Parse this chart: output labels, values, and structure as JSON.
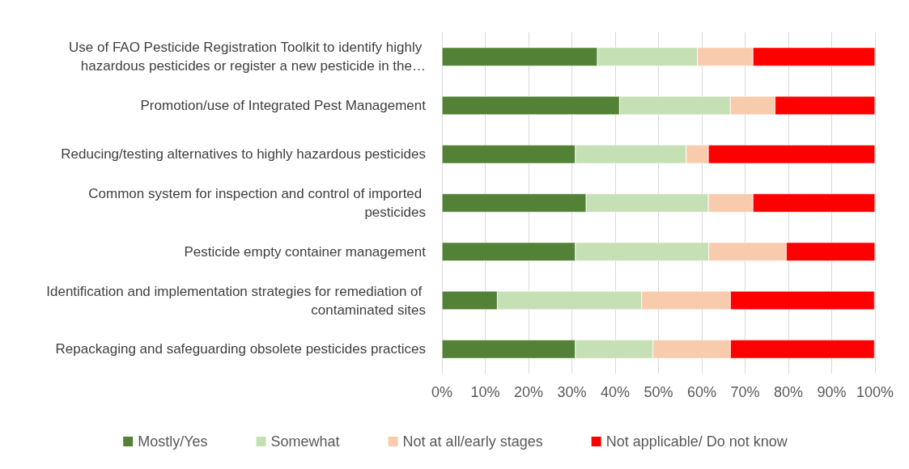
{
  "chart_data": {
    "type": "bar",
    "orientation": "horizontal",
    "stacked": true,
    "categories": [
      "Use of FAO Pesticide Registration Toolkit to identify highly hazardous pesticides or register a new pesticide in the…",
      "Promotion/use of Integrated Pest Management",
      "Reducing/testing alternatives to highly hazardous pesticides",
      "Common system for inspection and control of imported pesticides",
      "Pesticide empty container management",
      "Identification and implementation strategies for remediation of contaminated sites",
      "Repackaging and safeguarding obsolete pesticides practices"
    ],
    "series": [
      {
        "name": "Mostly/Yes",
        "color": "#538135",
        "values": [
          35.9,
          41.0,
          30.8,
          33.3,
          30.8,
          12.8,
          30.8
        ]
      },
      {
        "name": "Somewhat",
        "color": "#c5e0b4",
        "values": [
          23.1,
          25.6,
          25.6,
          28.2,
          30.8,
          33.3,
          17.9
        ]
      },
      {
        "name": "Not at all/early stages",
        "color": "#f8cbad",
        "values": [
          12.8,
          10.3,
          5.1,
          10.3,
          17.9,
          20.5,
          17.9
        ]
      },
      {
        "name": "Not applicable/ Do not know",
        "color": "#ff0000",
        "values": [
          28.2,
          23.1,
          38.5,
          28.2,
          20.5,
          33.3,
          33.3
        ]
      }
    ],
    "xlim": [
      0,
      100
    ],
    "xticks": [
      {
        "value": 0,
        "label": "0%"
      },
      {
        "value": 10,
        "label": "10%"
      },
      {
        "value": 20,
        "label": "20%"
      },
      {
        "value": 30,
        "label": "30%"
      },
      {
        "value": 40,
        "label": "40%"
      },
      {
        "value": 50,
        "label": "50%"
      },
      {
        "value": 60,
        "label": "60%"
      },
      {
        "value": 70,
        "label": "70%"
      },
      {
        "value": 80,
        "label": "80%"
      },
      {
        "value": 90,
        "label": "90%"
      },
      {
        "value": 100,
        "label": "100%"
      }
    ],
    "grid": "x",
    "legend": "bottom"
  }
}
